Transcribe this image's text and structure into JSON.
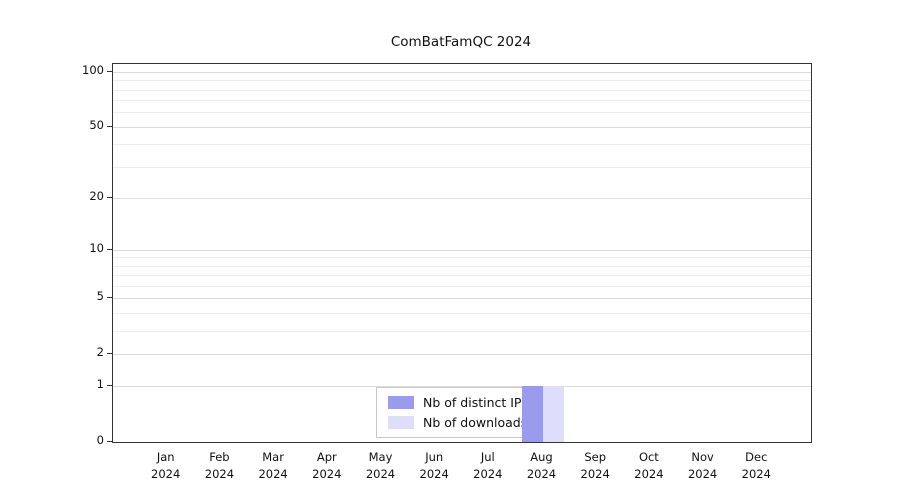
{
  "chart_data": {
    "type": "bar",
    "title": "ComBatFamQC 2024",
    "categories": [
      "Jan 2024",
      "Feb 2024",
      "Mar 2024",
      "Apr 2024",
      "May 2024",
      "Jun 2024",
      "Jul 2024",
      "Aug 2024",
      "Sep 2024",
      "Oct 2024",
      "Nov 2024",
      "Dec 2024"
    ],
    "series": [
      {
        "name": "Nb of distinct IPs",
        "color": "#9b9bee",
        "values": [
          0,
          0,
          0,
          0,
          0,
          0,
          0,
          1,
          0,
          0,
          0,
          0
        ]
      },
      {
        "name": "Nb of downloads",
        "color": "#dedefb",
        "values": [
          0,
          0,
          0,
          0,
          0,
          0,
          0,
          1,
          0,
          0,
          0,
          0
        ]
      }
    ],
    "xlabel": "",
    "ylabel": "",
    "y_scale": "log1p",
    "y_ticks": [
      0,
      1,
      2,
      5,
      10,
      20,
      50,
      100
    ],
    "ylim": [
      0,
      110
    ],
    "grid": true,
    "legend_position": "bottom-center-inside"
  }
}
